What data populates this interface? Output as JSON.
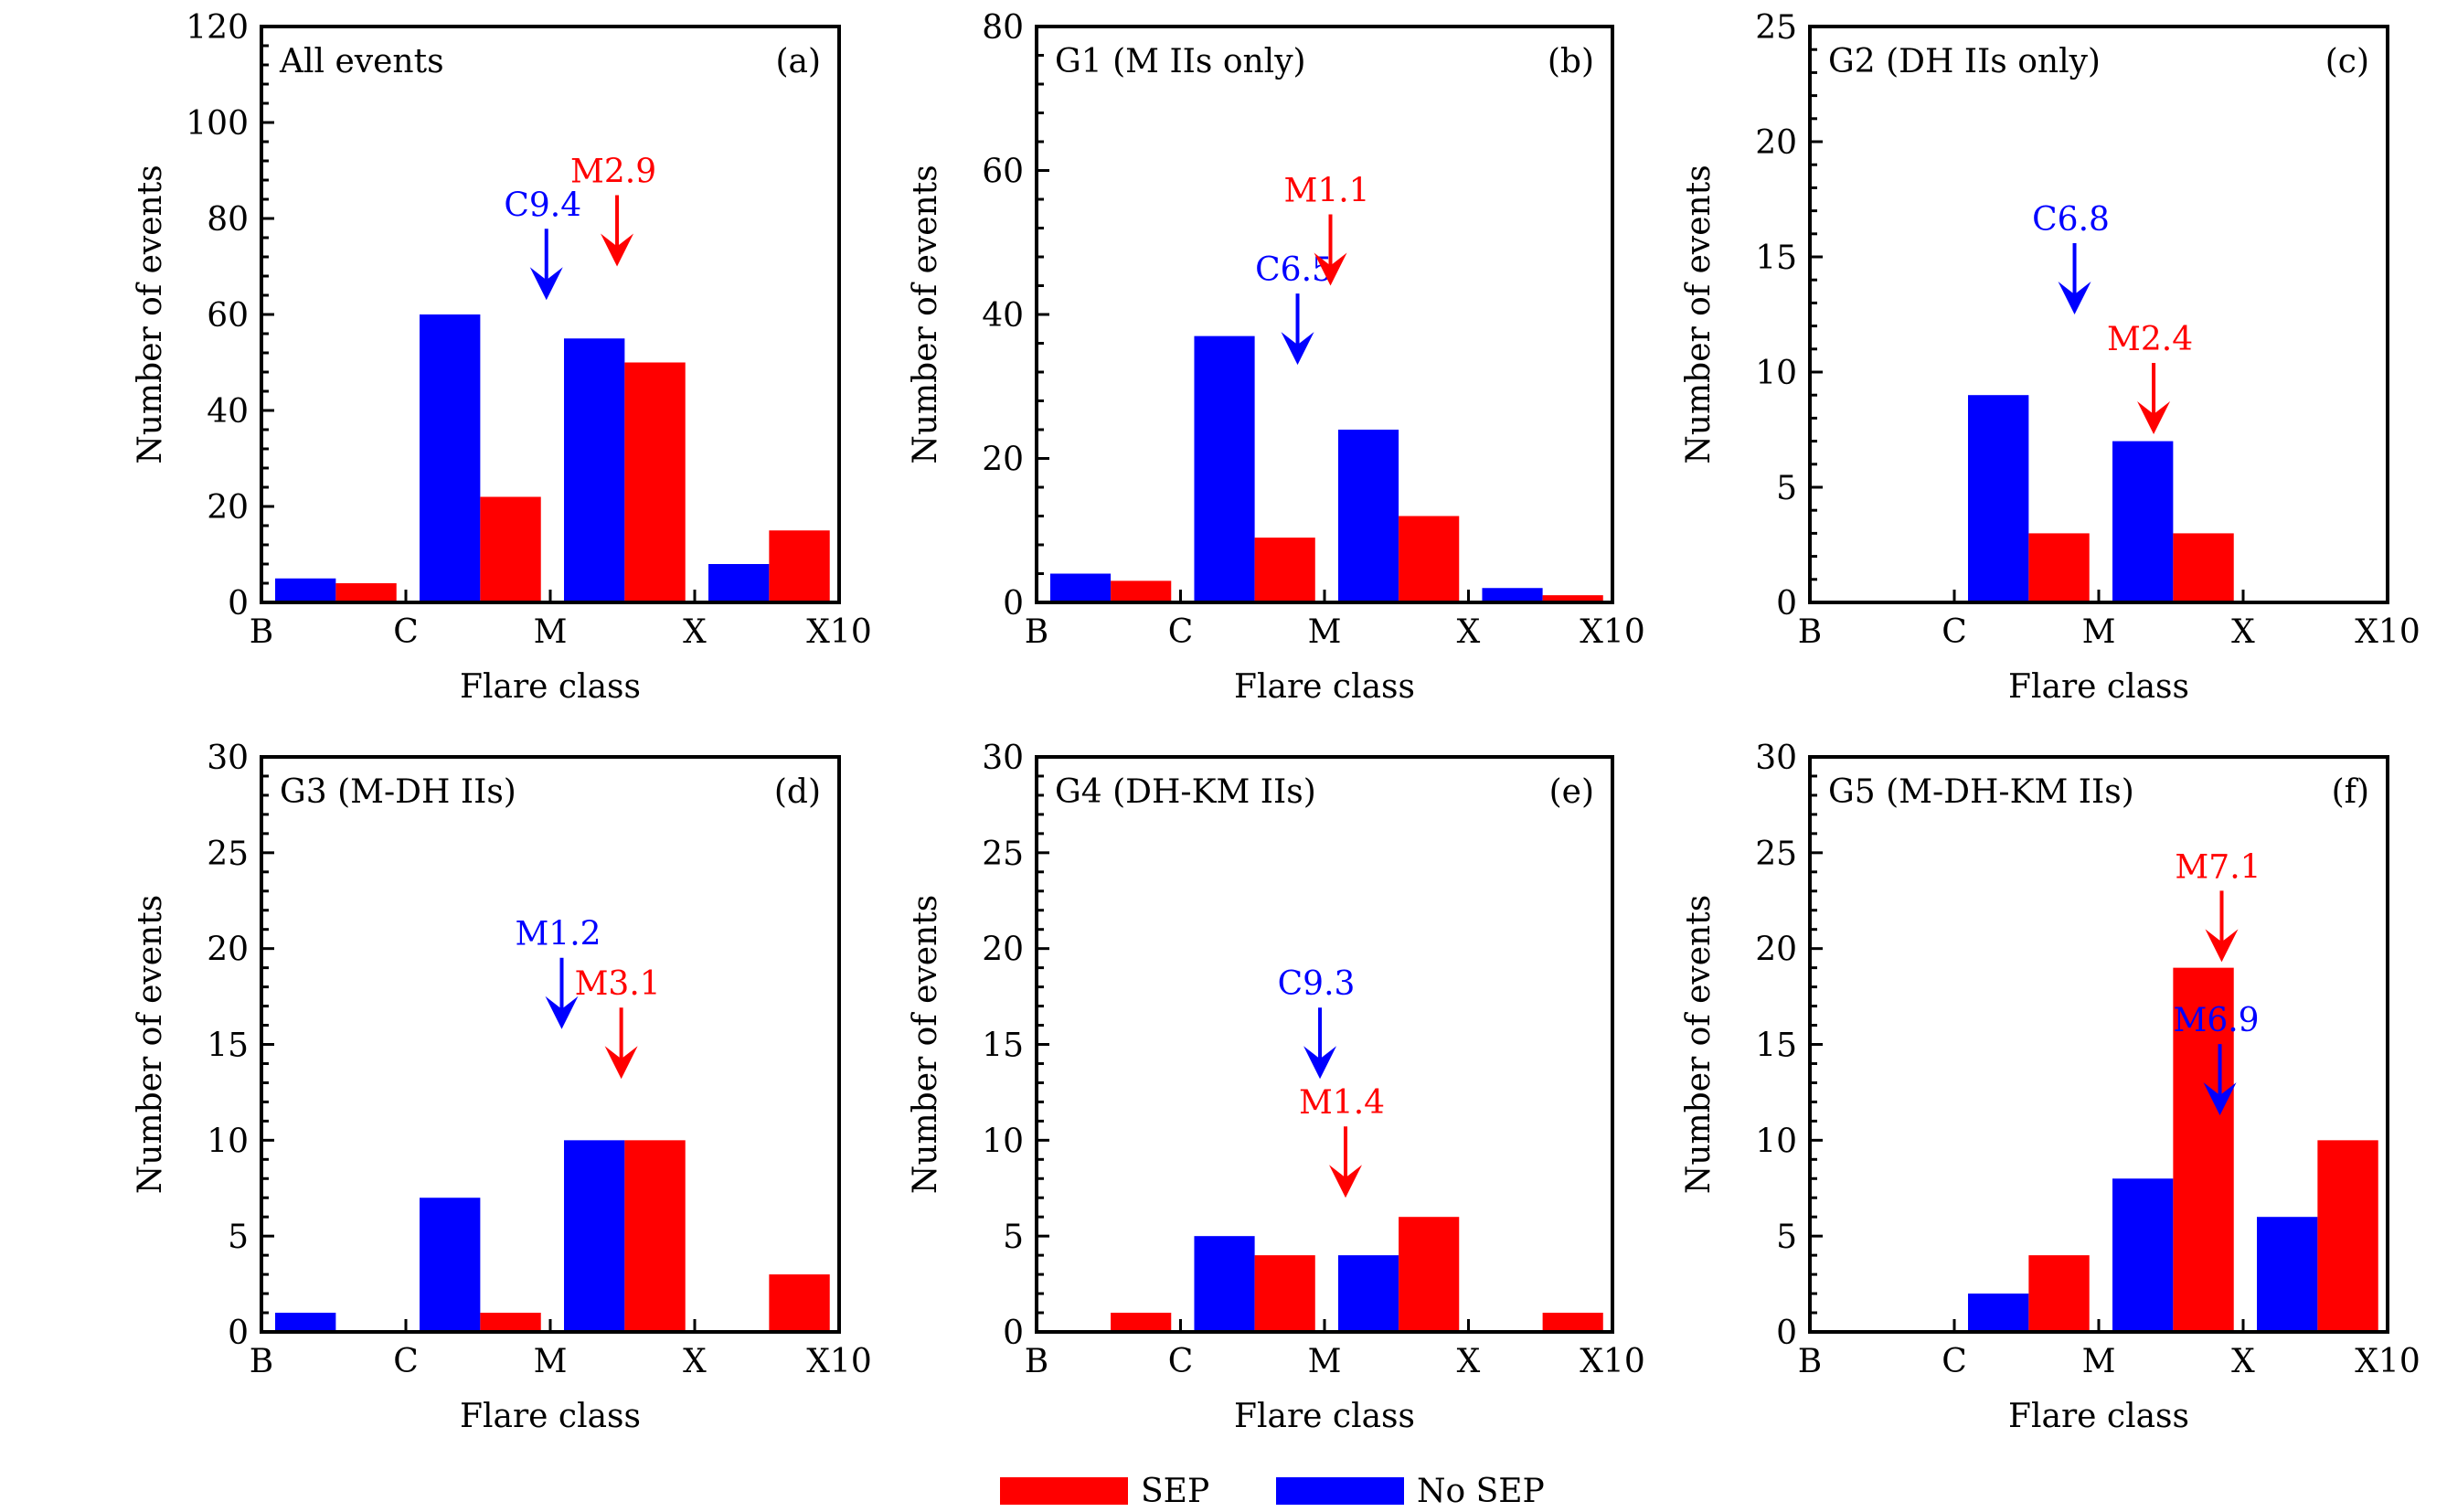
{
  "chart_data": {
    "type": "bar",
    "layout": "2x3 grid",
    "categories": [
      "B",
      "C",
      "M",
      "X"
    ],
    "x_tick_labels": [
      "B",
      "C",
      "M",
      "X",
      "X10"
    ],
    "xlabel": "Flare class",
    "ylabel": "Number of events",
    "grid": false,
    "legend": {
      "placement": "bottom-center",
      "entries": [
        {
          "name": "SEP",
          "color": "#ff0000"
        },
        {
          "name": "No SEP",
          "color": "#0000ff"
        }
      ]
    },
    "colors": {
      "sep": "#ff0000",
      "no_sep": "#0000ff",
      "axis": "#000000"
    },
    "panels": [
      {
        "id": "a",
        "tag": "(a)",
        "title": "All events",
        "ylim": [
          0,
          120
        ],
        "y_major": 20,
        "y_minor": 4,
        "series": [
          {
            "name": "No SEP",
            "values": [
              5,
              60,
              55,
              8
            ]
          },
          {
            "name": "SEP",
            "values": [
              4,
              22,
              50,
              15
            ]
          }
        ],
        "annotations": [
          {
            "label": "C9.4",
            "series": "No SEP",
            "flare_class": "C",
            "magnitude": 9.4,
            "tip_y": 63
          },
          {
            "label": "M2.9",
            "series": "SEP",
            "flare_class": "M",
            "magnitude": 2.9,
            "tip_y": 70
          }
        ]
      },
      {
        "id": "b",
        "tag": "(b)",
        "title": "G1 (M IIs only)",
        "ylim": [
          0,
          80
        ],
        "y_major": 20,
        "y_minor": 4,
        "series": [
          {
            "name": "No SEP",
            "values": [
              4,
              37,
              24,
              2
            ]
          },
          {
            "name": "SEP",
            "values": [
              3,
              9,
              12,
              1
            ]
          }
        ],
        "annotations": [
          {
            "label": "C6.5",
            "series": "No SEP",
            "flare_class": "C",
            "magnitude": 6.5,
            "tip_y": 33
          },
          {
            "label": "M1.1",
            "series": "SEP",
            "flare_class": "M",
            "magnitude": 1.1,
            "tip_y": 44
          }
        ]
      },
      {
        "id": "c",
        "tag": "(c)",
        "title": "G2 (DH IIs only)",
        "ylim": [
          0,
          25
        ],
        "y_major": 5,
        "y_minor": 1,
        "series": [
          {
            "name": "No SEP",
            "values": [
              0,
              9,
              7,
              0
            ]
          },
          {
            "name": "SEP",
            "values": [
              0,
              3,
              3,
              0
            ]
          }
        ],
        "annotations": [
          {
            "label": "C6.8",
            "series": "No SEP",
            "flare_class": "C",
            "magnitude": 6.8,
            "tip_y": 12.5
          },
          {
            "label": "M2.4",
            "series": "SEP",
            "flare_class": "M",
            "magnitude": 2.4,
            "tip_y": 7.3
          }
        ]
      },
      {
        "id": "d",
        "tag": "(d)",
        "title": "G3 (M-DH IIs)",
        "ylim": [
          0,
          30
        ],
        "y_major": 5,
        "y_minor": 1,
        "series": [
          {
            "name": "No SEP",
            "values": [
              1,
              7,
              10,
              0
            ]
          },
          {
            "name": "SEP",
            "values": [
              0,
              1,
              10,
              3
            ]
          }
        ],
        "annotations": [
          {
            "label": "M1.2",
            "series": "No SEP",
            "flare_class": "M",
            "magnitude": 1.2,
            "tip_y": 15.8
          },
          {
            "label": "M3.1",
            "series": "SEP",
            "flare_class": "M",
            "magnitude": 3.1,
            "tip_y": 13.2
          }
        ]
      },
      {
        "id": "e",
        "tag": "(e)",
        "title": "G4 (DH-KM IIs)",
        "ylim": [
          0,
          30
        ],
        "y_major": 5,
        "y_minor": 1,
        "series": [
          {
            "name": "No SEP",
            "values": [
              0,
              5,
              4,
              0
            ]
          },
          {
            "name": "SEP",
            "values": [
              1,
              4,
              6,
              1
            ]
          }
        ],
        "annotations": [
          {
            "label": "C9.3",
            "series": "No SEP",
            "flare_class": "C",
            "magnitude": 9.3,
            "tip_y": 13.2
          },
          {
            "label": "M1.4",
            "series": "SEP",
            "flare_class": "M",
            "magnitude": 1.4,
            "tip_y": 7
          }
        ]
      },
      {
        "id": "f",
        "tag": "(f)",
        "title": "G5 (M-DH-KM IIs)",
        "ylim": [
          0,
          30
        ],
        "y_major": 5,
        "y_minor": 1,
        "series": [
          {
            "name": "No SEP",
            "values": [
              0,
              2,
              8,
              6
            ]
          },
          {
            "name": "SEP",
            "values": [
              0,
              4,
              19,
              10
            ]
          }
        ],
        "annotations": [
          {
            "label": "M7.1",
            "series": "SEP",
            "flare_class": "M",
            "magnitude": 7.1,
            "tip_y": 19.3
          },
          {
            "label": "M6.9",
            "series": "No SEP",
            "flare_class": "M",
            "magnitude": 6.9,
            "tip_y": 11.3
          }
        ]
      }
    ]
  }
}
